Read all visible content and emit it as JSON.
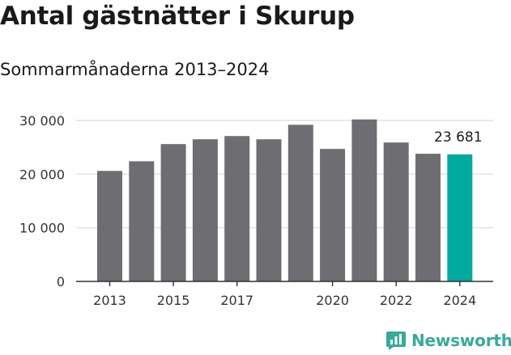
{
  "title": "Antal gästnätter i Skurup",
  "subtitle": "Sommarmånaderna 2013–2024",
  "brand": {
    "name": "Newsworthy",
    "color": "#3aa89a",
    "icon": "bar-chart-speech-bubble-icon"
  },
  "colors": {
    "bar": "#6e6d72",
    "highlight": "#00a99d",
    "grid": "#d9d9d9",
    "axis": "#333333"
  },
  "chart_data": {
    "type": "bar",
    "categories": [
      "2013",
      "2014",
      "2015",
      "2016",
      "2017",
      "2018",
      "2019",
      "2020",
      "2021",
      "2022",
      "2023",
      "2024"
    ],
    "values": [
      20600,
      22400,
      25600,
      26500,
      27100,
      26500,
      29200,
      24700,
      30200,
      25900,
      23800,
      23681
    ],
    "highlight_index": 11,
    "highlight_label": "23 681",
    "x_tick_labels": [
      "2013",
      "2015",
      "2017",
      "2020",
      "2022",
      "2024"
    ],
    "y_ticks": [
      0,
      10000,
      20000,
      30000
    ],
    "y_tick_labels": [
      "0",
      "10 000",
      "20 000",
      "30 000"
    ],
    "ylim": [
      0,
      30000
    ],
    "grid": true,
    "legend": "none",
    "xlabel": "",
    "ylabel": ""
  }
}
